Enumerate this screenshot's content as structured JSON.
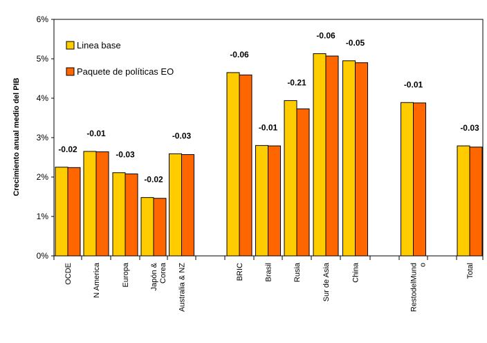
{
  "chart_data": {
    "type": "bar",
    "ylabel": "Crecimiento anual medio del PIB",
    "ylim": [
      0,
      6
    ],
    "yticks": [
      "0%",
      "1%",
      "2%",
      "3%",
      "4%",
      "5%",
      "6%"
    ],
    "grid": false,
    "legend_position": "top-left",
    "colors": {
      "series1": "#FFCC00",
      "series2": "#FF6600"
    },
    "categories": [
      "OCDE",
      "N America",
      "Europa",
      "Japón & Corea",
      "Australia & NZ",
      "BRIC",
      "Brasil",
      "Rusia",
      "Sur de Asia",
      "China",
      "RestodelMundo",
      "Total"
    ],
    "category_lines": [
      [
        "OCDE"
      ],
      [
        "N America"
      ],
      [
        "Europa"
      ],
      [
        "Japón &",
        "Corea"
      ],
      [
        "Australia & NZ"
      ],
      [
        "BRIC"
      ],
      [
        "Brasil"
      ],
      [
        "Rusia"
      ],
      [
        "Sur de Asia"
      ],
      [
        "China"
      ],
      [
        "RestodelMund",
        "o"
      ],
      [
        "Total"
      ]
    ],
    "series": [
      {
        "name": "Linea base",
        "values": [
          2.25,
          2.65,
          2.11,
          1.48,
          2.59,
          4.65,
          2.8,
          3.94,
          5.13,
          4.95,
          3.89,
          2.79
        ]
      },
      {
        "name": "Paquete de políticas EO",
        "values": [
          2.24,
          2.64,
          2.08,
          1.46,
          2.57,
          4.59,
          2.79,
          3.73,
          5.07,
          4.9,
          3.88,
          2.76
        ]
      }
    ],
    "data_labels": [
      "-0.02",
      "-0.01",
      "-0.03",
      "-0.02",
      "-0.03",
      "-0.06",
      "-0.01",
      "-0.21",
      "-0.06",
      "-0.05",
      "-0.01",
      "-0.03"
    ]
  }
}
